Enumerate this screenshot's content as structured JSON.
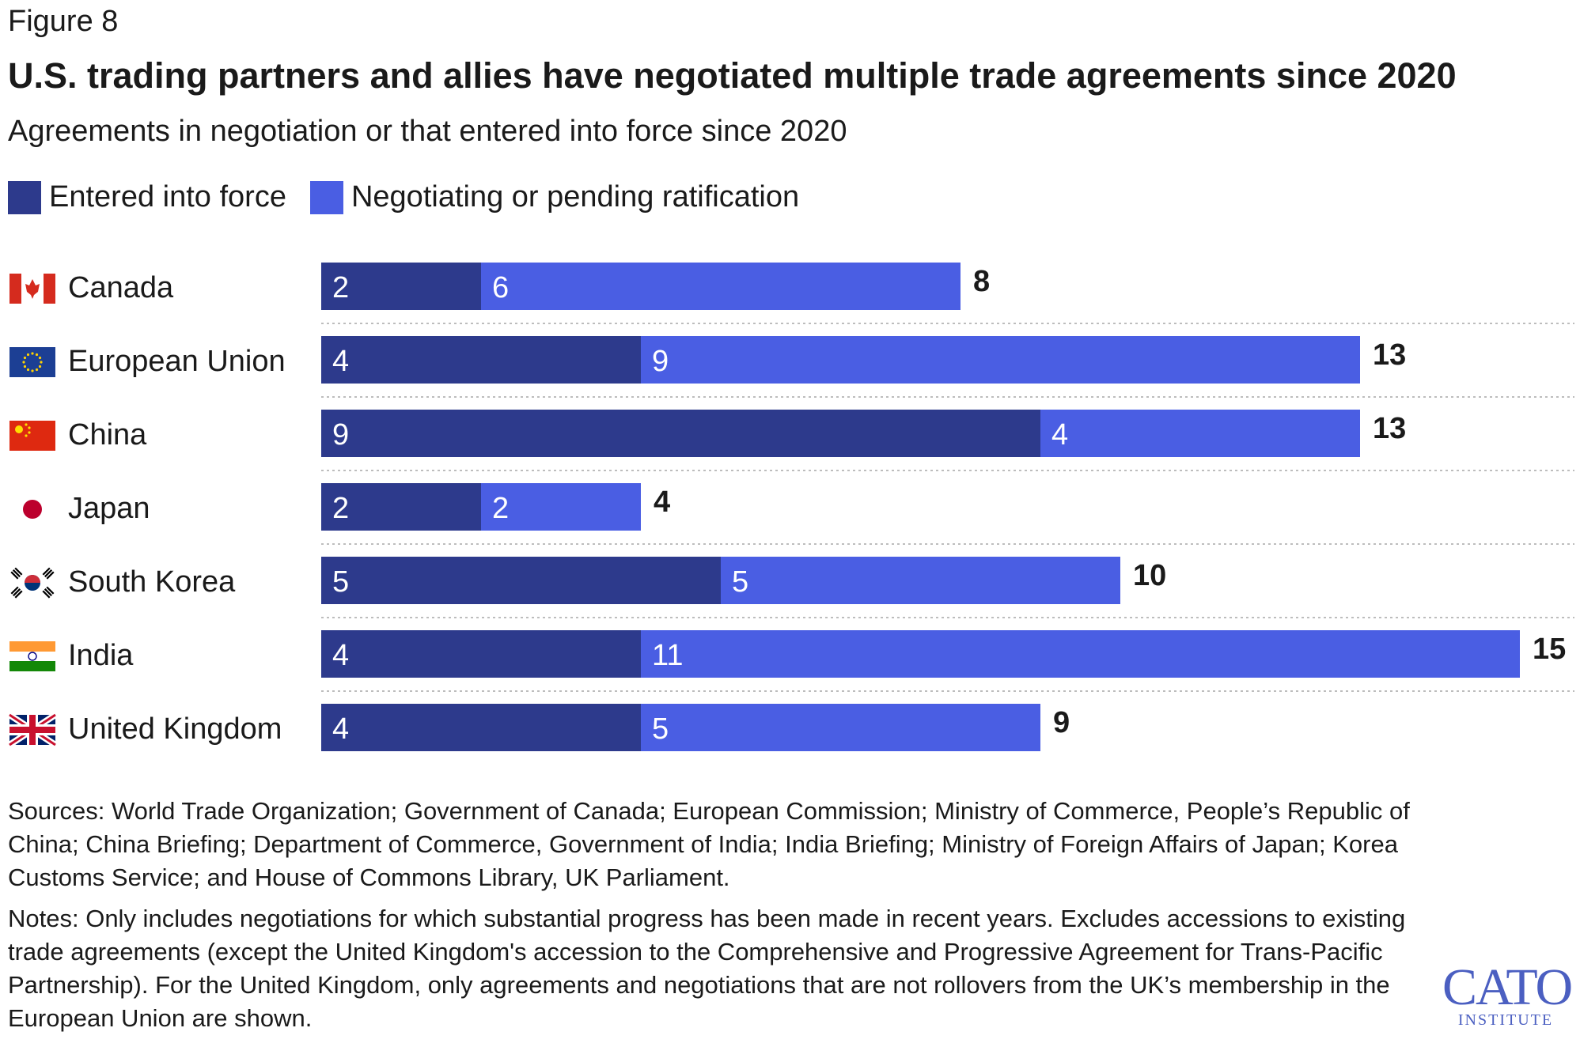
{
  "figure_label": "Figure 8",
  "colors": {
    "entered": "#2d3a8c",
    "negotiating": "#4a5ee3",
    "divider": "#bdbdbd"
  },
  "chart_data": {
    "type": "bar",
    "orientation": "horizontal",
    "stacked": true,
    "title": "U.S. trading partners and allies have negotiated multiple trade agreements since 2020",
    "subtitle": "Agreements in negotiation or that entered into force since 2020",
    "legend_position": "top-left",
    "categories": [
      "Canada",
      "European Union",
      "China",
      "Japan",
      "South Korea",
      "India",
      "United Kingdom"
    ],
    "flags": [
      "canada-flag",
      "eu-flag",
      "china-flag",
      "japan-flag",
      "south-korea-flag",
      "india-flag",
      "uk-flag"
    ],
    "series": [
      {
        "name": "Entered into force",
        "values": [
          2,
          4,
          9,
          2,
          5,
          4,
          4
        ]
      },
      {
        "name": "Negotiating or pending ratification",
        "values": [
          6,
          9,
          4,
          2,
          5,
          11,
          5
        ]
      }
    ],
    "totals": [
      8,
      13,
      13,
      4,
      10,
      15,
      9
    ],
    "xlim": [
      0,
      15
    ]
  },
  "sources": "Sources: World Trade Organization; Government of Canada; European Commission; Ministry of Commerce, People’s Republic of China; China Briefing; Department of Commerce, Government of India; India Briefing; Ministry of Foreign Affairs of Japan; Korea Customs Service; and House of Commons Library, UK Parliament.",
  "notes": "Notes: Only includes negotiations for which substantial progress has been made in recent years. Excludes accessions to existing trade agreements (except the United Kingdom's accession to the Comprehensive and Progressive Agreement for Trans-Pacific Partnership). For the United Kingdom, only agreements and negotiations that are not rollovers from the UK’s membership in the European Union are shown.",
  "logo": {
    "name": "CATO",
    "sub": "INSTITUTE"
  }
}
